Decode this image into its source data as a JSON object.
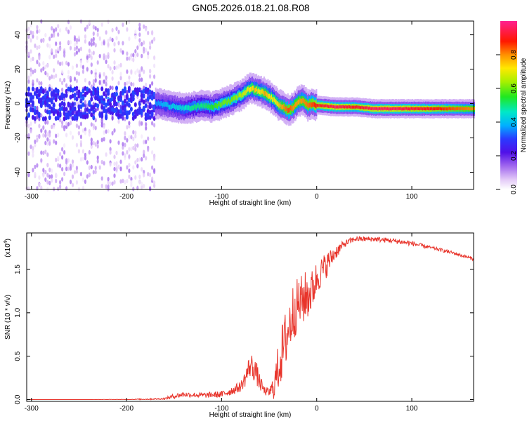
{
  "figure": {
    "title": "GN05.2026.018.21.08.R08"
  },
  "chart_data": [
    {
      "type": "heatmap",
      "title": "GN05.2026.018.21.08.R08",
      "xlabel": "Height of straight line (km)",
      "ylabel": "Frequency (Hz)",
      "xlim": [
        -305,
        165
      ],
      "ylim": [
        -50,
        48
      ],
      "x_ticks": [
        -300,
        -200,
        -100,
        0,
        100
      ],
      "x_tick_labels": [
        "-300",
        "-200",
        "-100",
        "0",
        "100"
      ],
      "y_ticks": [
        -40,
        -20,
        0,
        20,
        40
      ],
      "y_tick_labels": [
        "-40",
        "-20",
        "0",
        "20",
        "40"
      ],
      "colorbar": {
        "label": "Normalized spectral amplitude",
        "range": [
          0,
          1
        ],
        "ticks": [
          0.0,
          0.2,
          0.4,
          0.6,
          0.8
        ],
        "tick_labels": [
          "0.0",
          "0.2",
          "0.4",
          "0.6",
          "0.8"
        ],
        "colormap": "rainbow (white-purple-blue-cyan-green-yellow-red-magenta)"
      },
      "ridge": {
        "x": [
          -170,
          -160,
          -150,
          -140,
          -130,
          -120,
          -110,
          -100,
          -90,
          -80,
          -75,
          -70,
          -65,
          -60,
          -55,
          -50,
          -45,
          -40,
          -35,
          -30,
          -25,
          -20,
          -15,
          -10,
          -5,
          0,
          20,
          40,
          60,
          80,
          100,
          120,
          140,
          165
        ],
        "freq": [
          0,
          -1,
          -2,
          -3,
          -2,
          -1,
          -2,
          0,
          2,
          5,
          7,
          9,
          8,
          7,
          6,
          4,
          2,
          -1,
          -2,
          -4,
          -2,
          1,
          2,
          -1,
          0,
          -1,
          -2,
          -2,
          -3,
          -3,
          -3,
          -3,
          -3,
          -3
        ],
        "amp": [
          0.35,
          0.4,
          0.42,
          0.45,
          0.5,
          0.5,
          0.55,
          0.6,
          0.6,
          0.65,
          0.7,
          0.72,
          0.75,
          0.7,
          0.78,
          0.72,
          0.7,
          0.75,
          0.8,
          0.85,
          0.8,
          0.78,
          0.8,
          0.82,
          0.85,
          0.9,
          0.95,
          0.9,
          0.95,
          0.95,
          0.92,
          0.9,
          0.85,
          0.8
        ]
      },
      "noise_region": {
        "x_range": [
          -305,
          -170
        ],
        "freq_range": [
          -50,
          48
        ],
        "amp_range": [
          0.02,
          0.3
        ]
      }
    },
    {
      "type": "line",
      "xlabel": "Height of straight line (km)",
      "ylabel": "SNR (10 * v/v)",
      "scale_label": "(x10",
      "scale_exponent": "4",
      "xlim": [
        -305,
        165
      ],
      "ylim": [
        -0.02,
        1.92
      ],
      "x_ticks": [
        -300,
        -200,
        -100,
        0,
        100
      ],
      "x_tick_labels": [
        "-300",
        "-200",
        "-100",
        "0",
        "100"
      ],
      "y_ticks": [
        0.0,
        0.5,
        1.0,
        1.5
      ],
      "y_tick_labels": [
        "0.0",
        "0.5",
        "1.0",
        "1.5"
      ],
      "color": "#e8342b",
      "series": [
        {
          "name": "SNR",
          "x": [
            -305,
            -250,
            -200,
            -160,
            -150,
            -140,
            -120,
            -100,
            -90,
            -80,
            -75,
            -70,
            -65,
            -60,
            -55,
            -50,
            -45,
            -40,
            -35,
            -30,
            -25,
            -20,
            -15,
            -10,
            -5,
            0,
            10,
            20,
            30,
            40,
            60,
            80,
            100,
            120,
            140,
            165
          ],
          "values": [
            0.0,
            0.0,
            0.0,
            0.01,
            0.04,
            0.06,
            0.05,
            0.06,
            0.1,
            0.15,
            0.25,
            0.4,
            0.35,
            0.2,
            0.1,
            0.08,
            0.15,
            0.4,
            0.6,
            0.8,
            1.0,
            1.1,
            1.15,
            1.2,
            1.25,
            1.4,
            1.55,
            1.7,
            1.8,
            1.85,
            1.85,
            1.83,
            1.8,
            1.75,
            1.7,
            1.62
          ],
          "noise": [
            0.0,
            0.0,
            0.005,
            0.01,
            0.03,
            0.03,
            0.03,
            0.04,
            0.05,
            0.06,
            0.1,
            0.15,
            0.15,
            0.1,
            0.05,
            0.05,
            0.15,
            0.3,
            0.35,
            0.35,
            0.35,
            0.3,
            0.3,
            0.3,
            0.25,
            0.2,
            0.15,
            0.08,
            0.04,
            0.03,
            0.03,
            0.03,
            0.03,
            0.02,
            0.02,
            0.02
          ]
        }
      ]
    }
  ]
}
